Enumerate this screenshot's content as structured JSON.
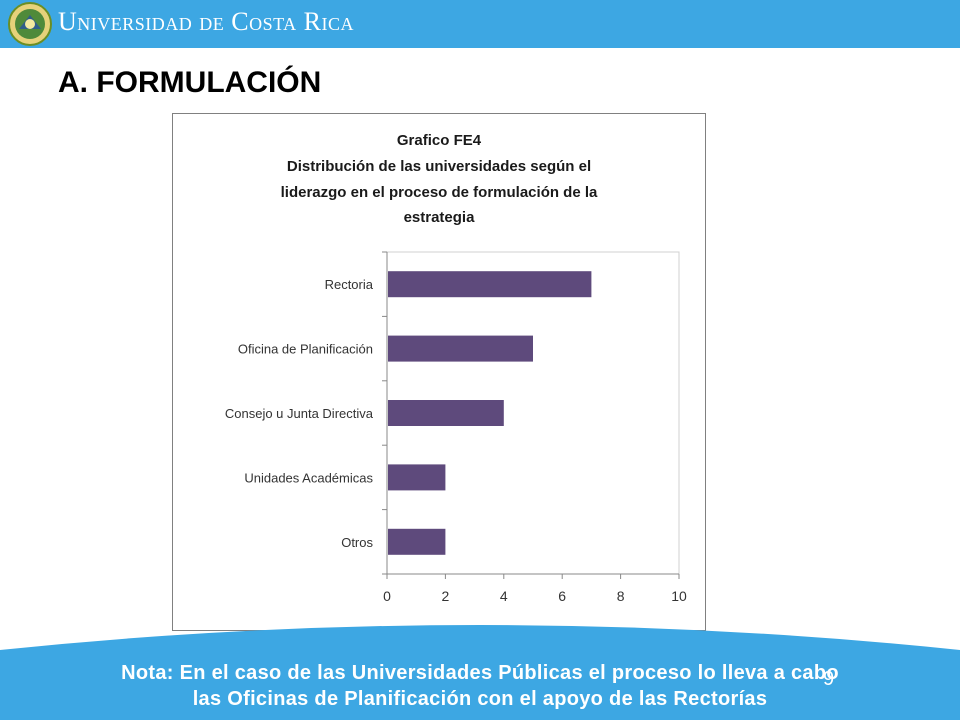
{
  "header": {
    "brand_text": "Universidad de Costa Rica",
    "bar_color": "#3da7e3",
    "logo_icon": "ucr-seal-icon"
  },
  "section_title": "A. FORMULACIÓN",
  "chart_data": {
    "type": "bar",
    "orientation": "horizontal",
    "title": "Grafico FE4",
    "subtitle": "Distribución de las universidades según el liderazgo en el proceso de formulación de la estrategia",
    "title_lines": [
      "Grafico FE4",
      "Distribución de las universidades según el",
      "liderazgo en el proceso de formulación de la",
      "estrategia"
    ],
    "categories": [
      "Rectoria",
      "Oficina de Planificación",
      "Consejo u Junta Directiva",
      "Unidades Académicas",
      "Otros"
    ],
    "values": [
      7,
      5,
      4,
      2,
      2
    ],
    "xlim": [
      0,
      10
    ],
    "xticks": [
      "0",
      "2",
      "4",
      "6",
      "8",
      "10"
    ],
    "xlabel": "",
    "ylabel": "",
    "grid": false,
    "bar_color": "#5e4a7c"
  },
  "note": {
    "line1": "Nota: En el caso de las Universidades Públicas el proceso lo lleva a cabo",
    "line2": "las Oficinas de Planificación con el apoyo de las Rectorías"
  },
  "page_number": "9"
}
